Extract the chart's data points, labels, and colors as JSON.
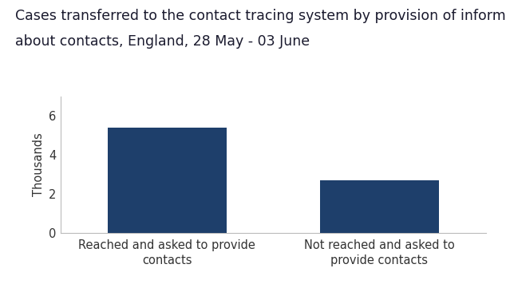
{
  "title_line1": "Cases transferred to the contact tracing system by provision of information",
  "title_line2": "about contacts, England, 28 May - 03 June",
  "categories": [
    "Reached and asked to provide\ncontacts",
    "Not reached and asked to\nprovide contacts"
  ],
  "values": [
    5.407,
    2.71
  ],
  "bar_color": "#1e3f6b",
  "ylabel": "Thousands",
  "ylim": [
    0,
    7
  ],
  "yticks": [
    0,
    2,
    4,
    6
  ],
  "background_color": "#ffffff",
  "title_fontsize": 12.5,
  "label_fontsize": 10.5,
  "tick_fontsize": 10.5,
  "bar_width": 0.28,
  "bar_positions": [
    0.25,
    0.75
  ]
}
